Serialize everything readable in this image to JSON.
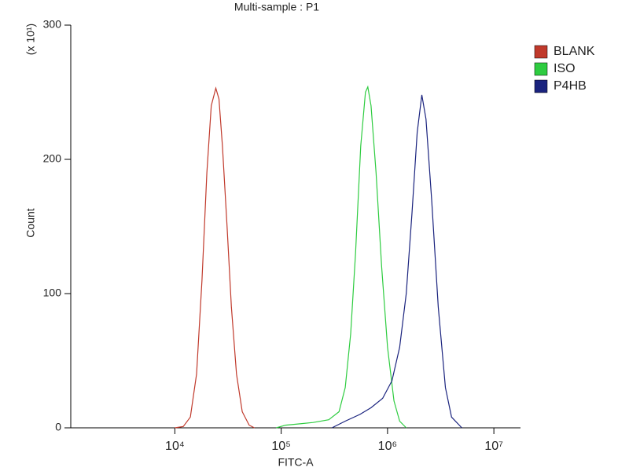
{
  "chart_data": {
    "type": "line",
    "title": "Multi-sample : P1",
    "x_label": "FITC-A",
    "y_label": "Count",
    "y_multiplier": "(x 10¹)",
    "xscale": "log",
    "xlim": [
      1050,
      17800000
    ],
    "xticks": [
      {
        "value": 10000,
        "label": "10⁴"
      },
      {
        "value": 100000,
        "label": "10⁵"
      },
      {
        "value": 1000000,
        "label": "10⁶"
      },
      {
        "value": 10000000,
        "label": "10⁷"
      }
    ],
    "ylim": [
      0,
      300
    ],
    "yticks": [
      0,
      100,
      200,
      300
    ],
    "legend": "right",
    "series": [
      {
        "name": "BLANK",
        "color": "#c0392b",
        "x": [
          10000,
          12000,
          14000,
          16000,
          18000,
          20000,
          22000,
          24300,
          26000,
          28000,
          31000,
          34000,
          38000,
          43000,
          50000,
          56000
        ],
        "values": [
          0,
          1,
          8,
          40,
          110,
          190,
          240,
          253,
          245,
          210,
          150,
          90,
          40,
          12,
          2,
          0
        ]
      },
      {
        "name": "ISO",
        "color": "#2ecc40",
        "x": [
          90000,
          110000,
          150000,
          200000,
          280000,
          350000,
          400000,
          450000,
          500000,
          560000,
          620000,
          653000,
          700000,
          780000,
          880000,
          1000000,
          1150000,
          1300000,
          1500000
        ],
        "values": [
          0,
          2,
          3,
          4,
          6,
          12,
          30,
          70,
          130,
          210,
          250,
          254,
          240,
          190,
          120,
          60,
          20,
          5,
          0
        ]
      },
      {
        "name": "P4HB",
        "color": "#1a237e",
        "x": [
          300000,
          400000,
          550000,
          700000,
          900000,
          1100000,
          1300000,
          1500000,
          1700000,
          1900000,
          2100000,
          2300000,
          2600000,
          3000000,
          3500000,
          4000000,
          5000000
        ],
        "values": [
          0,
          5,
          10,
          15,
          22,
          35,
          60,
          100,
          160,
          220,
          248,
          230,
          170,
          90,
          30,
          8,
          0
        ]
      }
    ]
  }
}
